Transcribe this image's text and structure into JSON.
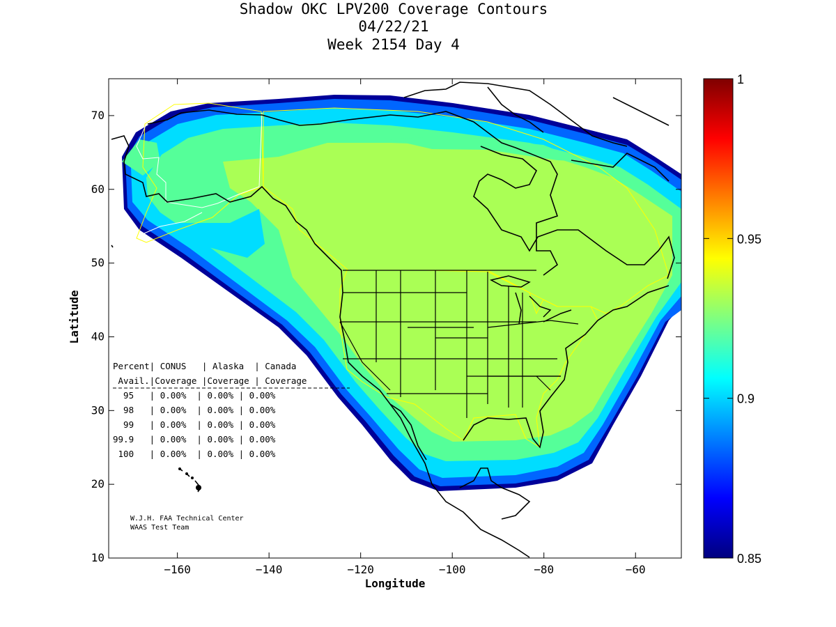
{
  "title_lines": [
    "Shadow OKC LPV200 Coverage Contours",
    "04/22/21",
    "Week 2154 Day 4"
  ],
  "axes": {
    "xlabel": "Longitude",
    "ylabel": "Latitude",
    "xlim": [
      -175,
      -50
    ],
    "ylim": [
      10,
      75
    ],
    "xticks": [
      -160,
      -140,
      -120,
      -100,
      -80,
      -60
    ],
    "yticks": [
      10,
      20,
      30,
      40,
      50,
      60,
      70
    ]
  },
  "colorbar": {
    "range": [
      0.85,
      1
    ],
    "ticks": [
      "1",
      "0.95",
      "0.9",
      "0.85"
    ],
    "colormap": "jet"
  },
  "coverage_table": {
    "header1": "Percent| CONUS   | Alaska  | Canada",
    "header2": " Avail.|Coverage |Coverage | Coverage",
    "rows": [
      "  95   | 0.00%  | 0.00% | 0.00%",
      "  98   | 0.00%  | 0.00% | 0.00%",
      "  99   | 0.00%  | 0.00% | 0.00%",
      "99.9   | 0.00%  | 0.00% | 0.00%",
      " 100   | 0.00%  | 0.00% | 0.00%"
    ]
  },
  "credits": [
    "W.J.H. FAA Technical Center",
    "WAAS Test Team"
  ],
  "colors": {
    "coverage_main": "#aaff55",
    "coverage_mid": "#55ff99",
    "coverage_edge": "#00ddff",
    "coverage_outer": "#0055ff",
    "coverage_rim": "#000099",
    "region_outline": "#ffff00"
  }
}
